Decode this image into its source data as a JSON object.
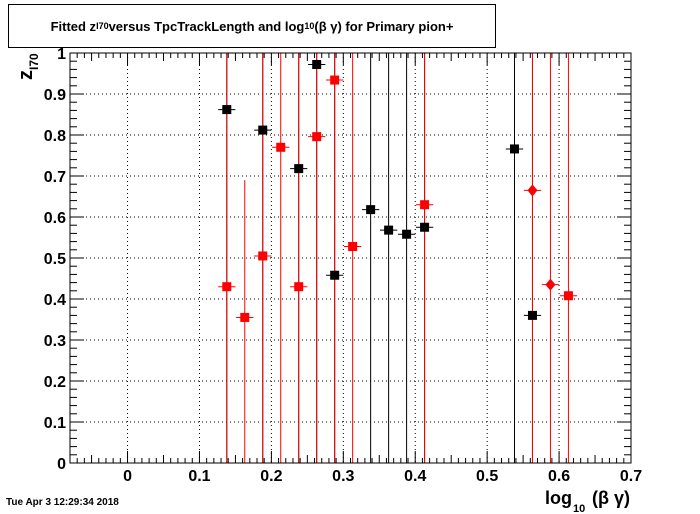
{
  "title": {
    "part1": "Fitted  z",
    "sub1": "I70",
    "part2": "  versus TpcTrackLength and log",
    "sub2": "10",
    "part3": " (β γ) for Primary pion+"
  },
  "timestamp": "Tue Apr  3 12:29:34 2018",
  "chart_data": {
    "type": "scatter",
    "title": "Fitted z_I70 versus TpcTrackLength and log10(β γ) for Primary pion+",
    "xlabel": {
      "main": "log",
      "sub": "10",
      "rest": "(β γ)"
    },
    "ylabel": {
      "main": "z",
      "sub": "I70"
    },
    "xlim": [
      -0.08,
      0.7
    ],
    "ylim": [
      0,
      1
    ],
    "x_ticks": [
      "0",
      "0.1",
      "0.2",
      "0.3",
      "0.4",
      "0.5",
      "0.6",
      "0.7"
    ],
    "y_ticks": [
      "0",
      "0.1",
      "0.2",
      "0.3",
      "0.4",
      "0.5",
      "0.6",
      "0.7",
      "0.8",
      "0.9",
      "1"
    ],
    "grid": true,
    "colors": {
      "black": "#000000",
      "red": "#ff0000"
    },
    "series": [
      {
        "color": "black",
        "marker": "square",
        "points": [
          {
            "x": 0.138,
            "y": 0.862,
            "xerr": 0.012,
            "ylo": 0.0,
            "yhi": 1.0
          },
          {
            "x": 0.188,
            "y": 0.812,
            "xerr": 0.012,
            "ylo": 0.0,
            "yhi": 1.0
          },
          {
            "x": 0.238,
            "y": 0.718,
            "xerr": 0.012,
            "ylo": 0.0,
            "yhi": 1.0
          },
          {
            "x": 0.263,
            "y": 0.972,
            "xerr": 0.012,
            "ylo": 0.0,
            "yhi": 1.0
          },
          {
            "x": 0.288,
            "y": 0.458,
            "xerr": 0.012,
            "ylo": 0.0,
            "yhi": 1.0
          },
          {
            "x": 0.338,
            "y": 0.618,
            "xerr": 0.012,
            "ylo": 0.0,
            "yhi": 1.0
          },
          {
            "x": 0.363,
            "y": 0.568,
            "xerr": 0.012,
            "ylo": 0.0,
            "yhi": 1.0
          },
          {
            "x": 0.388,
            "y": 0.558,
            "xerr": 0.012,
            "ylo": 0.0,
            "yhi": 1.0
          },
          {
            "x": 0.413,
            "y": 0.575,
            "xerr": 0.012,
            "ylo": 0.0,
            "yhi": 1.0
          },
          {
            "x": 0.538,
            "y": 0.766,
            "xerr": 0.012,
            "ylo": 0.0,
            "yhi": 1.0
          },
          {
            "x": 0.563,
            "y": 0.36,
            "xerr": 0.012,
            "ylo": 0.0,
            "yhi": 1.0
          }
        ]
      },
      {
        "color": "red",
        "marker": "square",
        "points": [
          {
            "x": 0.138,
            "y": 0.43,
            "xerr": 0.012,
            "ylo": 0.0,
            "yhi": 1.0
          },
          {
            "x": 0.163,
            "y": 0.355,
            "xerr": 0.012,
            "ylo": 0.0,
            "yhi": 0.69
          },
          {
            "x": 0.188,
            "y": 0.505,
            "xerr": 0.012,
            "ylo": 0.0,
            "yhi": 1.0
          },
          {
            "x": 0.213,
            "y": 0.77,
            "xerr": 0.012,
            "ylo": 0.0,
            "yhi": 1.0
          },
          {
            "x": 0.238,
            "y": 0.43,
            "xerr": 0.012,
            "ylo": 0.0,
            "yhi": 1.0
          },
          {
            "x": 0.263,
            "y": 0.796,
            "xerr": 0.012,
            "ylo": 0.0,
            "yhi": 1.0
          },
          {
            "x": 0.288,
            "y": 0.934,
            "xerr": 0.012,
            "ylo": 0.0,
            "yhi": 1.0
          },
          {
            "x": 0.313,
            "y": 0.528,
            "xerr": 0.012,
            "ylo": 0.0,
            "yhi": 1.0
          },
          {
            "x": 0.413,
            "y": 0.63,
            "xerr": 0.012,
            "ylo": 0.0,
            "yhi": 1.0
          },
          {
            "x": 0.613,
            "y": 0.408,
            "xerr": 0.012,
            "ylo": 0.0,
            "yhi": 1.0
          }
        ]
      },
      {
        "color": "red",
        "marker": "diamond",
        "points": [
          {
            "x": 0.563,
            "y": 0.665,
            "xerr": 0.012,
            "ylo": 0.0,
            "yhi": 1.0
          },
          {
            "x": 0.588,
            "y": 0.435,
            "xerr": 0.012,
            "ylo": 0.0,
            "yhi": 1.0
          }
        ]
      }
    ]
  }
}
